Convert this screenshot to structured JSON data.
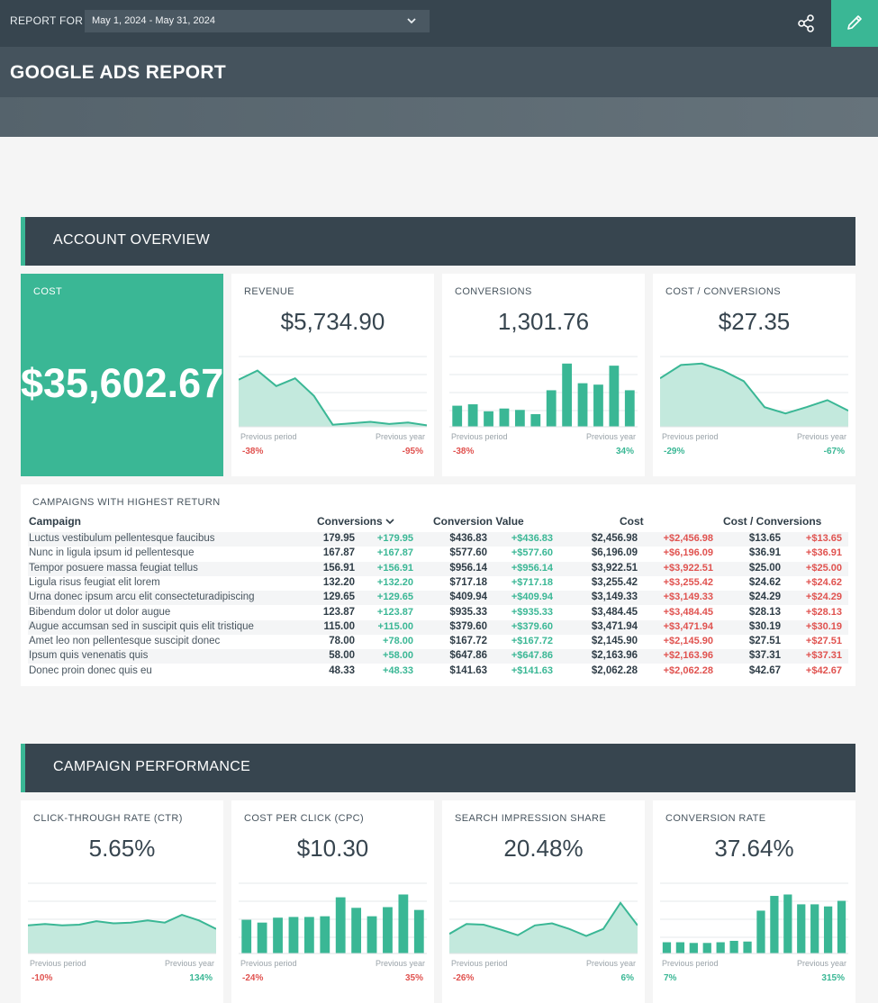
{
  "header": {
    "report_for_label": "REPORT FOR",
    "date_range": "May 1, 2024 - May 31, 2024",
    "title": "GOOGLE ADS REPORT",
    "accent_color": "#3ab795",
    "dark_color": "#37454f"
  },
  "sections": {
    "overview": "ACCOUNT OVERVIEW",
    "performance": "CAMPAIGN PERFORMANCE"
  },
  "common": {
    "previous_period": "Previous period",
    "previous_year": "Previous year"
  },
  "overview_cards": {
    "cost": {
      "label": "COST",
      "value": "$35,602.67"
    },
    "revenue": {
      "label": "REVENUE",
      "value": "$5,734.90",
      "prev_period": "-38%",
      "prev_year": "-95%"
    },
    "conversions": {
      "label": "CONVERSIONS",
      "value": "1,301.76",
      "prev_period": "-38%",
      "prev_year": "34%"
    },
    "cost_per_conv": {
      "label": "COST / CONVERSIONS",
      "value": "$27.35",
      "prev_period": "-29%",
      "prev_year": "-67%"
    }
  },
  "performance_cards": {
    "ctr": {
      "label": "CLICK-THROUGH RATE (CTR)",
      "value": "5.65%",
      "prev_period": "-10%",
      "prev_year": "134%"
    },
    "cpc": {
      "label": "COST PER CLICK (CPC)",
      "value": "$10.30",
      "prev_period": "-24%",
      "prev_year": "35%"
    },
    "sis": {
      "label": "SEARCH IMPRESSION SHARE",
      "value": "20.48%",
      "prev_period": "-26%",
      "prev_year": "6%"
    },
    "conv_rate": {
      "label": "CONVERSION RATE",
      "value": "37.64%",
      "prev_period": "7%",
      "prev_year": "315%"
    }
  },
  "chart_data": [
    {
      "type": "area",
      "title": "REVENUE",
      "values": [
        67,
        80,
        58,
        69,
        44,
        3,
        5,
        7,
        4,
        6,
        2
      ],
      "ylim": [
        0,
        100
      ]
    },
    {
      "type": "bar",
      "title": "CONVERSIONS",
      "values": [
        30,
        32,
        22,
        26,
        24,
        18,
        52,
        90,
        62,
        60,
        87,
        52
      ],
      "ylim": [
        0,
        100
      ]
    },
    {
      "type": "area",
      "title": "COST / CONVERSIONS",
      "values": [
        69,
        88,
        90,
        80,
        65,
        28,
        19,
        28,
        38,
        23
      ],
      "ylim": [
        0,
        100
      ]
    },
    {
      "type": "area",
      "title": "CLICK-THROUGH RATE (CTR)",
      "values": [
        40,
        42,
        40,
        41,
        46,
        43,
        44,
        47,
        44,
        55,
        47,
        35
      ],
      "ylim": [
        0,
        100
      ]
    },
    {
      "type": "bar",
      "title": "COST PER CLICK (CPC)",
      "values": [
        48,
        44,
        51,
        52,
        52,
        53,
        80,
        65,
        53,
        66,
        84,
        62
      ],
      "ylim": [
        0,
        100
      ]
    },
    {
      "type": "area",
      "title": "SEARCH IMPRESSION SHARE",
      "values": [
        28,
        42,
        41,
        34,
        26,
        40,
        43,
        35,
        25,
        35,
        72,
        40
      ],
      "ylim": [
        0,
        100
      ]
    },
    {
      "type": "bar",
      "title": "CONVERSION RATE",
      "values": [
        16,
        16,
        15,
        15,
        16,
        18,
        17,
        61,
        82,
        84,
        70,
        70,
        67,
        75
      ],
      "ylim": [
        0,
        100
      ]
    }
  ],
  "campaigns": {
    "title": "CAMPAIGNS WITH HIGHEST RETURN",
    "columns": [
      "Campaign",
      "Conversions",
      "Conversion Value",
      "Cost",
      "Cost / Conversions"
    ],
    "rows": [
      [
        "Luctus vestibulum pellentesque faucibus",
        "179.95",
        "+179.95",
        "$436.83",
        "+$436.83",
        "$2,456.98",
        "+$2,456.98",
        "$13.65",
        "+$13.65"
      ],
      [
        "Nunc in ligula ipsum id pellentesque",
        "167.87",
        "+167.87",
        "$577.60",
        "+$577.60",
        "$6,196.09",
        "+$6,196.09",
        "$36.91",
        "+$36.91"
      ],
      [
        "Tempor posuere massa feugiat tellus",
        "156.91",
        "+156.91",
        "$956.14",
        "+$956.14",
        "$3,922.51",
        "+$3,922.51",
        "$25.00",
        "+$25.00"
      ],
      [
        "Ligula risus feugiat elit lorem",
        "132.20",
        "+132.20",
        "$717.18",
        "+$717.18",
        "$3,255.42",
        "+$3,255.42",
        "$24.62",
        "+$24.62"
      ],
      [
        "Urna donec ipsum arcu elit consecteturadipiscing",
        "129.65",
        "+129.65",
        "$409.94",
        "+$409.94",
        "$3,149.33",
        "+$3,149.33",
        "$24.29",
        "+$24.29"
      ],
      [
        "Bibendum dolor ut dolor augue",
        "123.87",
        "+123.87",
        "$935.33",
        "+$935.33",
        "$3,484.45",
        "+$3,484.45",
        "$28.13",
        "+$28.13"
      ],
      [
        "Augue accumsan sed in suscipit quis elit tristique",
        "115.00",
        "+115.00",
        "$379.60",
        "+$379.60",
        "$3,471.94",
        "+$3,471.94",
        "$30.19",
        "+$30.19"
      ],
      [
        "Amet leo non pellentesque suscipit donec",
        "78.00",
        "+78.00",
        "$167.72",
        "+$167.72",
        "$2,145.90",
        "+$2,145.90",
        "$27.51",
        "+$27.51"
      ],
      [
        "Ipsum quis venenatis quis",
        "58.00",
        "+58.00",
        "$647.86",
        "+$647.86",
        "$2,163.96",
        "+$2,163.96",
        "$37.31",
        "+$37.31"
      ],
      [
        "Donec proin donec quis eu",
        "48.33",
        "+48.33",
        "$141.63",
        "+$141.63",
        "$2,062.28",
        "+$2,062.28",
        "$42.67",
        "+$42.67"
      ]
    ]
  }
}
